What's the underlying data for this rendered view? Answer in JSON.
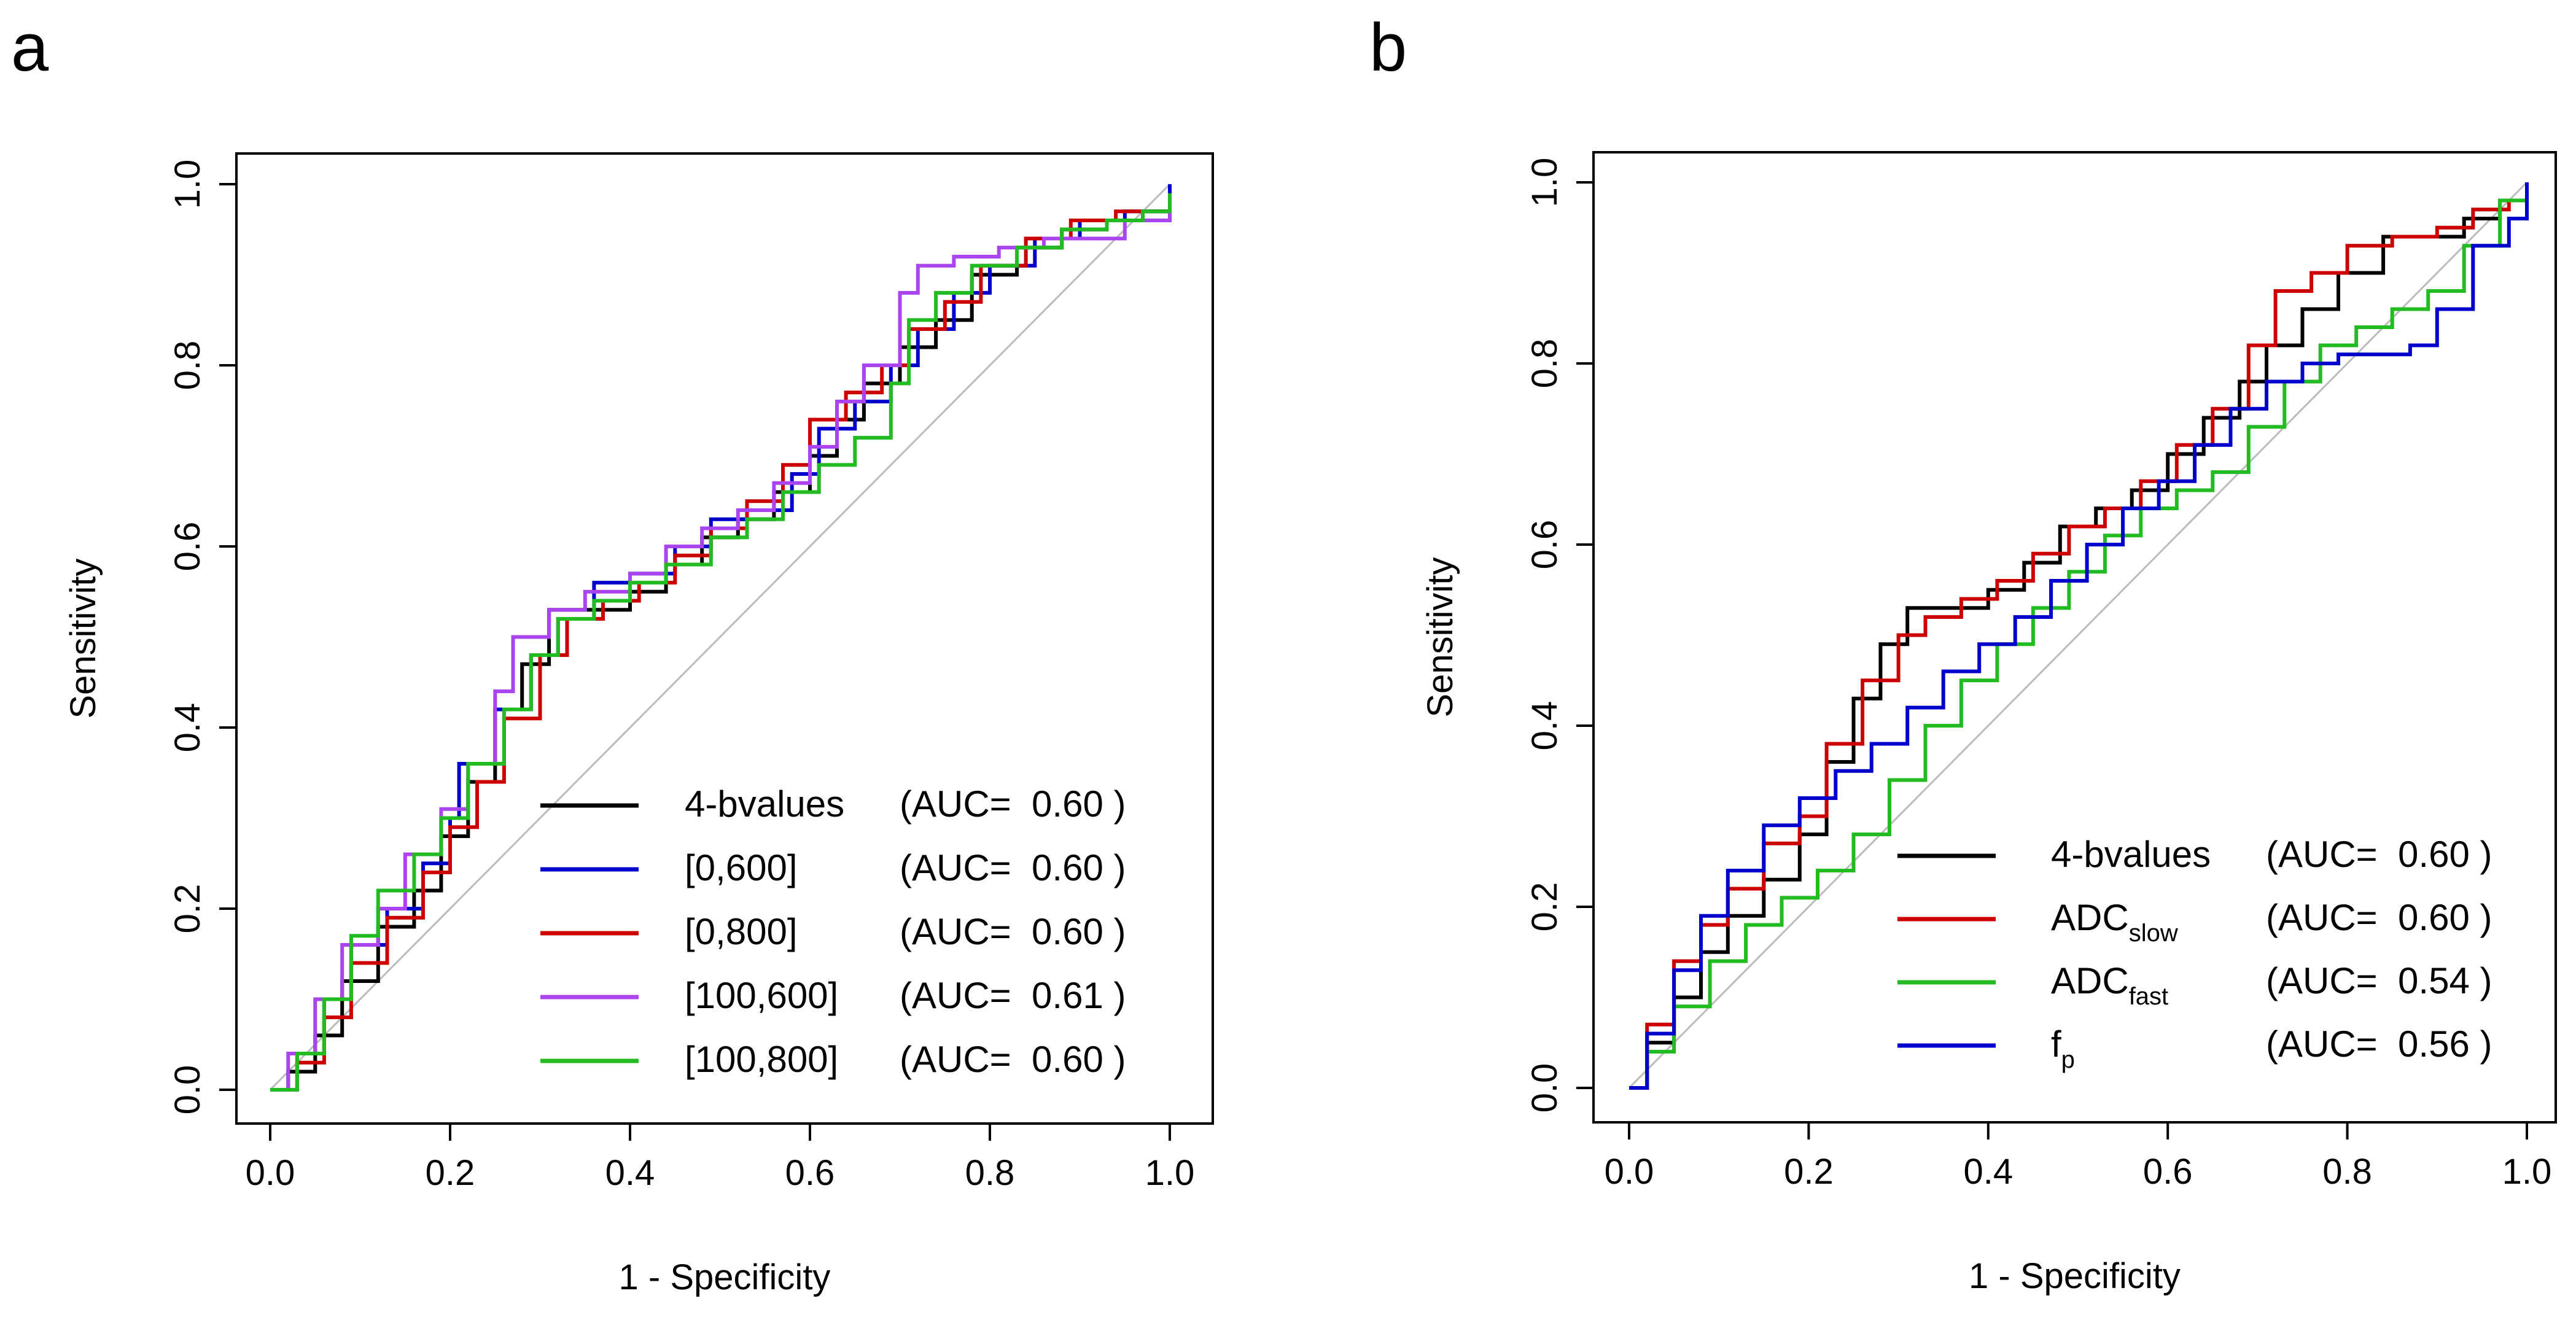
{
  "chart_data": [
    {
      "panel_label": "a",
      "type": "line",
      "step": true,
      "xlabel": "1 - Specificity",
      "ylabel": "Sensitivity",
      "xlim": [
        0,
        1
      ],
      "ylim": [
        0,
        1
      ],
      "xticks": [
        "0.0",
        "0.2",
        "0.4",
        "0.6",
        "0.8",
        "1.0"
      ],
      "yticks": [
        "0.0",
        "0.2",
        "0.4",
        "0.6",
        "0.8",
        "1.0"
      ],
      "reference_line": {
        "from": [
          0,
          0
        ],
        "to": [
          1,
          1
        ],
        "color": "#bbbbbb"
      },
      "legend_position": "bottom-right",
      "series": [
        {
          "name": "4-bvalues",
          "auc_text": "(AUC=  0.60 )",
          "color": "#000000",
          "x": [
            0,
            0.02,
            0.05,
            0.08,
            0.12,
            0.16,
            0.19,
            0.22,
            0.25,
            0.28,
            0.31,
            0.35,
            0.4,
            0.44,
            0.48,
            0.52,
            0.56,
            0.6,
            0.63,
            0.66,
            0.7,
            0.74,
            0.78,
            0.83,
            0.88,
            0.93,
            0.97,
            1.0
          ],
          "y": [
            0,
            0.02,
            0.06,
            0.12,
            0.18,
            0.22,
            0.28,
            0.34,
            0.42,
            0.47,
            0.53,
            0.53,
            0.55,
            0.58,
            0.61,
            0.63,
            0.66,
            0.7,
            0.74,
            0.78,
            0.82,
            0.85,
            0.9,
            0.93,
            0.95,
            0.96,
            0.97,
            1.0
          ]
        },
        {
          "name": "[0,600]",
          "auc_text": "(AUC=  0.60 )",
          "color": "#0000cc",
          "x": [
            0,
            0.03,
            0.06,
            0.09,
            0.13,
            0.17,
            0.2,
            0.21,
            0.25,
            0.29,
            0.32,
            0.36,
            0.4,
            0.45,
            0.49,
            0.53,
            0.58,
            0.61,
            0.65,
            0.69,
            0.72,
            0.76,
            0.8,
            0.85,
            0.9,
            0.95,
            1.0
          ],
          "y": [
            0,
            0.04,
            0.1,
            0.16,
            0.2,
            0.25,
            0.3,
            0.36,
            0.42,
            0.48,
            0.52,
            0.56,
            0.57,
            0.6,
            0.63,
            0.64,
            0.68,
            0.73,
            0.76,
            0.8,
            0.84,
            0.88,
            0.91,
            0.94,
            0.96,
            0.97,
            1.0
          ]
        },
        {
          "name": "[0,800]",
          "auc_text": "(AUC=  0.60 )",
          "color": "#cc0000",
          "x": [
            0,
            0.03,
            0.06,
            0.09,
            0.13,
            0.17,
            0.2,
            0.23,
            0.26,
            0.3,
            0.33,
            0.37,
            0.41,
            0.45,
            0.49,
            0.53,
            0.57,
            0.6,
            0.64,
            0.68,
            0.71,
            0.75,
            0.79,
            0.84,
            0.89,
            0.94,
            0.98,
            1.0
          ],
          "y": [
            0,
            0.03,
            0.08,
            0.14,
            0.19,
            0.24,
            0.29,
            0.34,
            0.41,
            0.48,
            0.52,
            0.54,
            0.56,
            0.59,
            0.62,
            0.65,
            0.69,
            0.74,
            0.77,
            0.8,
            0.84,
            0.87,
            0.91,
            0.94,
            0.96,
            0.97,
            0.97,
            0.99
          ]
        },
        {
          "name": "[100,600]",
          "auc_text": "(AUC=  0.61 )",
          "color": "#aa44ee",
          "x": [
            0,
            0.02,
            0.05,
            0.08,
            0.12,
            0.15,
            0.19,
            0.22,
            0.25,
            0.27,
            0.31,
            0.35,
            0.4,
            0.44,
            0.48,
            0.52,
            0.56,
            0.6,
            0.63,
            0.66,
            0.7,
            0.72,
            0.76,
            0.81,
            0.86,
            0.91,
            0.95,
            1.0
          ],
          "y": [
            0,
            0.04,
            0.1,
            0.16,
            0.2,
            0.26,
            0.31,
            0.36,
            0.44,
            0.5,
            0.53,
            0.55,
            0.57,
            0.6,
            0.62,
            0.64,
            0.67,
            0.71,
            0.76,
            0.8,
            0.88,
            0.91,
            0.92,
            0.93,
            0.94,
            0.94,
            0.96,
            0.98
          ]
        },
        {
          "name": "[100,800]",
          "auc_text": "(AUC=  0.60 )",
          "color": "#22bb22",
          "x": [
            0,
            0.03,
            0.06,
            0.09,
            0.12,
            0.16,
            0.19,
            0.22,
            0.26,
            0.29,
            0.32,
            0.36,
            0.4,
            0.44,
            0.49,
            0.53,
            0.57,
            0.61,
            0.65,
            0.69,
            0.71,
            0.74,
            0.78,
            0.83,
            0.88,
            0.93,
            0.97,
            1.0
          ],
          "y": [
            0,
            0.04,
            0.1,
            0.17,
            0.22,
            0.26,
            0.3,
            0.36,
            0.42,
            0.48,
            0.52,
            0.54,
            0.56,
            0.58,
            0.61,
            0.63,
            0.66,
            0.69,
            0.72,
            0.78,
            0.85,
            0.88,
            0.91,
            0.93,
            0.95,
            0.96,
            0.97,
            0.99
          ]
        }
      ]
    },
    {
      "panel_label": "b",
      "type": "line",
      "step": true,
      "xlabel": "1 - Specificity",
      "ylabel": "Sensitivity",
      "xlim": [
        0,
        1
      ],
      "ylim": [
        0,
        1
      ],
      "xticks": [
        "0.0",
        "0.2",
        "0.4",
        "0.6",
        "0.8",
        "1.0"
      ],
      "yticks": [
        "0.0",
        "0.2",
        "0.4",
        "0.6",
        "0.8",
        "1.0"
      ],
      "reference_line": {
        "from": [
          0,
          0
        ],
        "to": [
          1,
          1
        ],
        "color": "#bbbbbb"
      },
      "legend_position": "bottom-right",
      "series": [
        {
          "name": "4-bvalues",
          "name_sub": "",
          "auc_text": "(AUC=  0.60 )",
          "color": "#000000",
          "x": [
            0,
            0.02,
            0.05,
            0.08,
            0.11,
            0.15,
            0.19,
            0.22,
            0.25,
            0.28,
            0.31,
            0.35,
            0.4,
            0.44,
            0.48,
            0.52,
            0.56,
            0.6,
            0.64,
            0.68,
            0.71,
            0.75,
            0.79,
            0.84,
            0.89,
            0.93,
            0.97,
            1.0
          ],
          "y": [
            0,
            0.05,
            0.1,
            0.15,
            0.19,
            0.23,
            0.28,
            0.36,
            0.43,
            0.49,
            0.53,
            0.53,
            0.55,
            0.58,
            0.62,
            0.64,
            0.66,
            0.7,
            0.74,
            0.78,
            0.82,
            0.86,
            0.9,
            0.94,
            0.94,
            0.96,
            0.98,
            1.0
          ]
        },
        {
          "name": "ADC",
          "name_sub": "slow",
          "auc_text": "(AUC=  0.60 )",
          "color": "#cc0000",
          "x": [
            0,
            0.02,
            0.05,
            0.08,
            0.11,
            0.15,
            0.19,
            0.22,
            0.26,
            0.3,
            0.33,
            0.37,
            0.41,
            0.45,
            0.49,
            0.53,
            0.57,
            0.61,
            0.65,
            0.69,
            0.72,
            0.76,
            0.8,
            0.85,
            0.9,
            0.94,
            0.98,
            1.0
          ],
          "y": [
            0,
            0.07,
            0.14,
            0.18,
            0.22,
            0.27,
            0.3,
            0.38,
            0.45,
            0.5,
            0.52,
            0.54,
            0.56,
            0.59,
            0.62,
            0.64,
            0.67,
            0.71,
            0.75,
            0.82,
            0.88,
            0.9,
            0.93,
            0.94,
            0.95,
            0.97,
            0.98,
            0.99
          ]
        },
        {
          "name": "ADC",
          "name_sub": "fast",
          "auc_text": "(AUC=  0.54 )",
          "color": "#22bb22",
          "x": [
            0,
            0.02,
            0.05,
            0.09,
            0.13,
            0.17,
            0.21,
            0.25,
            0.29,
            0.33,
            0.37,
            0.41,
            0.45,
            0.49,
            0.53,
            0.57,
            0.61,
            0.65,
            0.69,
            0.73,
            0.77,
            0.81,
            0.85,
            0.89,
            0.93,
            0.97,
            1.0
          ],
          "y": [
            0,
            0.04,
            0.09,
            0.14,
            0.18,
            0.21,
            0.24,
            0.28,
            0.34,
            0.4,
            0.45,
            0.49,
            0.53,
            0.57,
            0.61,
            0.64,
            0.66,
            0.68,
            0.73,
            0.78,
            0.82,
            0.84,
            0.86,
            0.88,
            0.93,
            0.98,
            1.0
          ]
        },
        {
          "name": "f",
          "name_sub": "p",
          "auc_text": "(AUC=  0.56 )",
          "color": "#0000cc",
          "x": [
            0,
            0.02,
            0.05,
            0.08,
            0.11,
            0.15,
            0.19,
            0.23,
            0.27,
            0.31,
            0.35,
            0.39,
            0.43,
            0.47,
            0.51,
            0.55,
            0.59,
            0.63,
            0.67,
            0.71,
            0.75,
            0.79,
            0.83,
            0.87,
            0.9,
            0.94,
            0.98,
            1.0
          ],
          "y": [
            0,
            0.06,
            0.13,
            0.19,
            0.24,
            0.29,
            0.32,
            0.35,
            0.38,
            0.42,
            0.46,
            0.49,
            0.52,
            0.56,
            0.6,
            0.64,
            0.67,
            0.71,
            0.75,
            0.78,
            0.8,
            0.81,
            0.81,
            0.82,
            0.86,
            0.93,
            0.96,
            1.0
          ]
        }
      ]
    }
  ]
}
